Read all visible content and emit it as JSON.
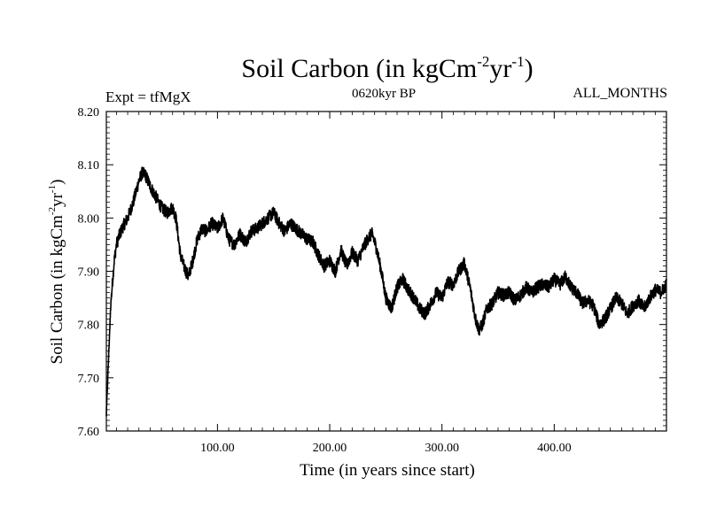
{
  "chart_data": {
    "type": "line",
    "title_main": "Soil Carbon (in kgCm",
    "title_sup1": "-2",
    "title_mid": "yr",
    "title_sup2": "-1",
    "title_end": ")",
    "subtitle_left": "Expt = tfMgX",
    "subtitle_center": "0620kyr BP",
    "subtitle_right": "ALL_MONTHS",
    "xlabel": "Time (in years since start)",
    "ylabel_main": "Soil Carbon (in kgCm",
    "ylabel_sup1": "-2",
    "ylabel_mid": "yr",
    "ylabel_sup2": "-1",
    "ylabel_end": ")",
    "xlim": [
      1,
      500
    ],
    "ylim": [
      7.6,
      8.2
    ],
    "xticks": [
      100,
      200,
      300,
      400
    ],
    "xtick_labels": [
      "100.00",
      "200.00",
      "300.00",
      "400.00"
    ],
    "yticks": [
      7.6,
      7.7,
      7.8,
      7.9,
      8.0,
      8.1,
      8.2
    ],
    "ytick_labels": [
      "7.60",
      "7.70",
      "7.80",
      "7.90",
      "8.00",
      "8.10",
      "8.20"
    ],
    "grid": false,
    "line_color": "#000000",
    "noise_amplitude": 0.012,
    "series": [
      {
        "x": [
          1,
          3,
          5,
          8,
          10,
          13,
          16,
          20,
          25,
          30,
          33,
          36,
          40,
          45,
          50,
          55,
          60,
          63,
          67,
          70,
          74,
          78,
          82,
          86,
          90,
          95,
          100,
          105,
          110,
          115,
          120,
          125,
          130,
          135,
          140,
          145,
          150,
          155,
          160,
          165,
          170,
          175,
          180,
          185,
          190,
          195,
          200,
          205,
          210,
          215,
          220,
          225,
          230,
          235,
          238,
          242,
          246,
          250,
          255,
          260,
          265,
          270,
          275,
          280,
          285,
          290,
          295,
          300,
          305,
          310,
          315,
          320,
          325,
          330,
          333,
          336,
          340,
          345,
          350,
          355,
          360,
          365,
          370,
          375,
          380,
          385,
          390,
          395,
          400,
          405,
          410,
          415,
          420,
          425,
          430,
          435,
          440,
          445,
          450,
          455,
          460,
          465,
          470,
          475,
          480,
          485,
          490,
          495,
          500
        ],
        "values": [
          7.63,
          7.74,
          7.84,
          7.92,
          7.95,
          7.97,
          7.985,
          8.0,
          8.03,
          8.07,
          8.085,
          8.08,
          8.06,
          8.04,
          8.02,
          8.01,
          8.02,
          8.0,
          7.93,
          7.91,
          7.89,
          7.92,
          7.96,
          7.98,
          7.975,
          7.99,
          7.98,
          8.0,
          7.96,
          7.95,
          7.97,
          7.955,
          7.975,
          7.98,
          7.99,
          8.0,
          8.01,
          7.99,
          7.975,
          7.99,
          7.98,
          7.97,
          7.96,
          7.955,
          7.93,
          7.91,
          7.92,
          7.9,
          7.94,
          7.91,
          7.935,
          7.92,
          7.945,
          7.965,
          7.97,
          7.94,
          7.9,
          7.85,
          7.83,
          7.87,
          7.885,
          7.865,
          7.85,
          7.83,
          7.82,
          7.84,
          7.86,
          7.85,
          7.88,
          7.875,
          7.9,
          7.915,
          7.87,
          7.81,
          7.79,
          7.8,
          7.83,
          7.84,
          7.86,
          7.855,
          7.86,
          7.845,
          7.855,
          7.87,
          7.86,
          7.87,
          7.875,
          7.87,
          7.885,
          7.875,
          7.89,
          7.87,
          7.86,
          7.84,
          7.845,
          7.835,
          7.8,
          7.81,
          7.83,
          7.85,
          7.84,
          7.82,
          7.835,
          7.845,
          7.83,
          7.85,
          7.865,
          7.86,
          7.875
        ]
      }
    ]
  }
}
